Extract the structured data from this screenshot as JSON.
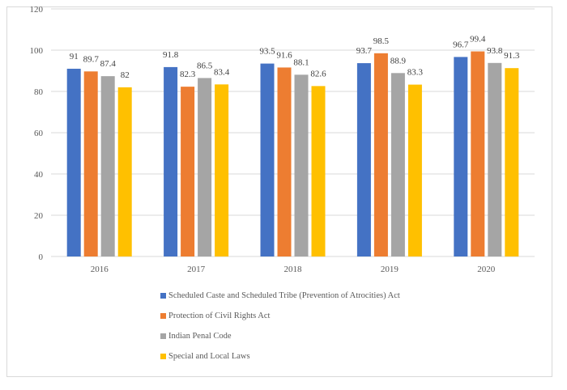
{
  "chart_data": {
    "type": "bar",
    "title": "",
    "xlabel": "",
    "ylabel": "",
    "ylim": [
      0,
      120
    ],
    "yticks": [
      0,
      20,
      40,
      60,
      80,
      100,
      120
    ],
    "grid": true,
    "legend_position": "bottom",
    "categories": [
      "2016",
      "2017",
      "2018",
      "2019",
      "2020"
    ],
    "series": [
      {
        "name": "Scheduled Caste and Scheduled Tribe (Prevention of Atrocities) Act",
        "color": "#4472c4",
        "values": [
          91,
          91.8,
          93.5,
          93.7,
          96.7
        ]
      },
      {
        "name": "Protection of Civil Rights Act",
        "color": "#ed7d31",
        "values": [
          89.7,
          82.3,
          91.6,
          98.5,
          99.4
        ]
      },
      {
        "name": "Indian Penal Code",
        "color": "#a5a5a5",
        "values": [
          87.4,
          86.5,
          88.1,
          88.9,
          93.8
        ]
      },
      {
        "name": "Special and Local Laws",
        "color": "#ffc000",
        "values": [
          82,
          83.4,
          82.6,
          83.3,
          91.3
        ]
      }
    ]
  }
}
